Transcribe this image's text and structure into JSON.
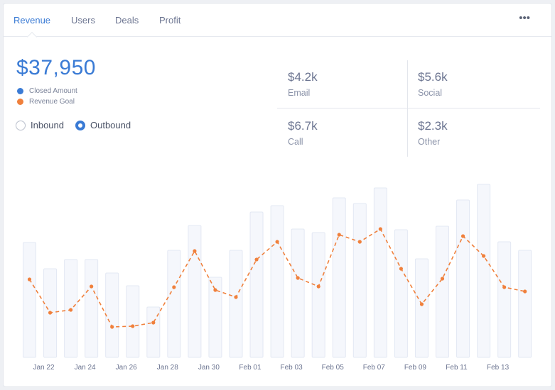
{
  "tabs": [
    {
      "label": "Revenue",
      "active": true
    },
    {
      "label": "Users",
      "active": false
    },
    {
      "label": "Deals",
      "active": false
    },
    {
      "label": "Profit",
      "active": false
    }
  ],
  "more_label": "•••",
  "summary": {
    "amount": "$37,950",
    "legend": [
      {
        "label": "Closed Amount",
        "color": "#3a7bd5"
      },
      {
        "label": "Revenue Goal",
        "color": "#f0803c"
      }
    ]
  },
  "filters": {
    "options": [
      {
        "label": "Inbound",
        "checked": false
      },
      {
        "label": "Outbound",
        "checked": true
      }
    ]
  },
  "stats": [
    {
      "value": "$4.2k",
      "label": "Email"
    },
    {
      "value": "$5.6k",
      "label": "Social"
    },
    {
      "value": "$6.7k",
      "label": "Call"
    },
    {
      "value": "$2.3k",
      "label": "Other"
    }
  ],
  "chart_data": {
    "type": "bar",
    "bar_color": "#f5f7fc",
    "bar_border": "#e3e8f3",
    "line_color": "#f0803c",
    "x_tick_labels": [
      "Jan 22",
      "Jan 24",
      "Jan 26",
      "Jan 28",
      "Jan 30",
      "Feb 01",
      "Feb 03",
      "Feb 05",
      "Feb 07",
      "Feb 09",
      "Feb 11",
      "Feb 13"
    ],
    "series": [
      {
        "type": "bar",
        "values": [
          162,
          125,
          138,
          138,
          119,
          101,
          71,
          151,
          186,
          113,
          151,
          205,
          214,
          181,
          176,
          225,
          217,
          239,
          180,
          139,
          185,
          222,
          244,
          163,
          151
        ]
      },
      {
        "type": "line",
        "style": "dashed",
        "values": [
          110,
          63,
          67,
          100,
          43,
          44,
          49,
          99,
          150,
          95,
          85,
          138,
          163,
          112,
          100,
          173,
          163,
          181,
          125,
          75,
          111,
          171,
          143,
          99,
          93
        ]
      }
    ],
    "ylim": [
      0,
      250
    ],
    "grid": false
  }
}
